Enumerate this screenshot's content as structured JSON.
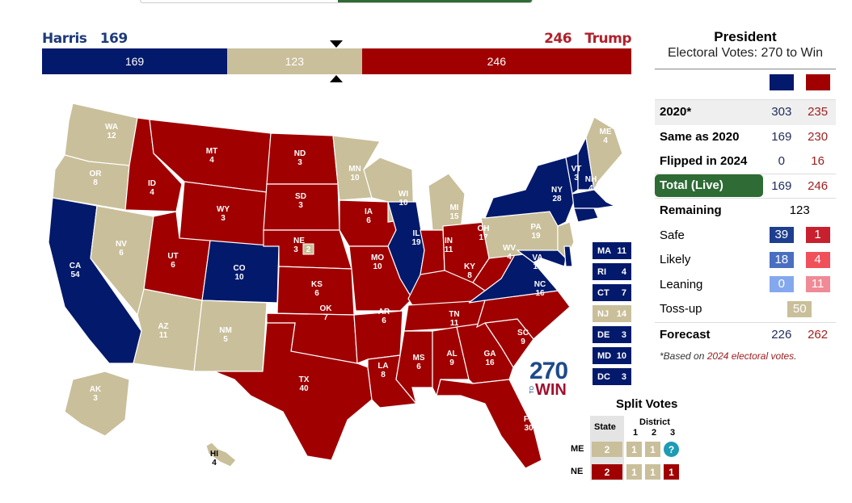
{
  "colors": {
    "dem": "#03196b",
    "rep": "#a00000",
    "tossup": "#c9bf9a",
    "green": "#2e6b35"
  },
  "header": {
    "harris_label": "Harris",
    "harris_total": "169",
    "trump_total": "246",
    "trump_label": "Trump"
  },
  "bar": {
    "dem": 169,
    "tossup": 123,
    "rep": 246,
    "dem_label": "169",
    "tossup_label": "123",
    "rep_label": "246"
  },
  "states": [
    {
      "abbr": "WA",
      "ev": "12",
      "p": "t"
    },
    {
      "abbr": "OR",
      "ev": "8",
      "p": "t"
    },
    {
      "abbr": "CA",
      "ev": "54",
      "p": "d"
    },
    {
      "abbr": "NV",
      "ev": "6",
      "p": "t"
    },
    {
      "abbr": "ID",
      "ev": "4",
      "p": "r"
    },
    {
      "abbr": "MT",
      "ev": "4",
      "p": "r"
    },
    {
      "abbr": "WY",
      "ev": "3",
      "p": "r"
    },
    {
      "abbr": "UT",
      "ev": "6",
      "p": "r"
    },
    {
      "abbr": "AZ",
      "ev": "11",
      "p": "t"
    },
    {
      "abbr": "CO",
      "ev": "10",
      "p": "d"
    },
    {
      "abbr": "NM",
      "ev": "5",
      "p": "t"
    },
    {
      "abbr": "ND",
      "ev": "3",
      "p": "r"
    },
    {
      "abbr": "SD",
      "ev": "3",
      "p": "r"
    },
    {
      "abbr": "NE",
      "ev": "3",
      "p": "r"
    },
    {
      "abbr": "KS",
      "ev": "6",
      "p": "r"
    },
    {
      "abbr": "OK",
      "ev": "7",
      "p": "r"
    },
    {
      "abbr": "TX",
      "ev": "40",
      "p": "r"
    },
    {
      "abbr": "MN",
      "ev": "10",
      "p": "t"
    },
    {
      "abbr": "IA",
      "ev": "6",
      "p": "r"
    },
    {
      "abbr": "MO",
      "ev": "10",
      "p": "r"
    },
    {
      "abbr": "AR",
      "ev": "6",
      "p": "r"
    },
    {
      "abbr": "LA",
      "ev": "8",
      "p": "r"
    },
    {
      "abbr": "WI",
      "ev": "10",
      "p": "t"
    },
    {
      "abbr": "IL",
      "ev": "19",
      "p": "d"
    },
    {
      "abbr": "MI",
      "ev": "15",
      "p": "t"
    },
    {
      "abbr": "IN",
      "ev": "11",
      "p": "r"
    },
    {
      "abbr": "OH",
      "ev": "17",
      "p": "r"
    },
    {
      "abbr": "KY",
      "ev": "8",
      "p": "r"
    },
    {
      "abbr": "TN",
      "ev": "11",
      "p": "r"
    },
    {
      "abbr": "MS",
      "ev": "6",
      "p": "r"
    },
    {
      "abbr": "AL",
      "ev": "9",
      "p": "r"
    },
    {
      "abbr": "GA",
      "ev": "16",
      "p": "r"
    },
    {
      "abbr": "FL",
      "ev": "30",
      "p": "r"
    },
    {
      "abbr": "SC",
      "ev": "9",
      "p": "r"
    },
    {
      "abbr": "NC",
      "ev": "16",
      "p": "r"
    },
    {
      "abbr": "VA",
      "ev": "13",
      "p": "d"
    },
    {
      "abbr": "WV",
      "ev": "4",
      "p": "r"
    },
    {
      "abbr": "PA",
      "ev": "19",
      "p": "t"
    },
    {
      "abbr": "NY",
      "ev": "28",
      "p": "d"
    },
    {
      "abbr": "NJ",
      "ev": "",
      "p": "t"
    },
    {
      "abbr": "MD",
      "ev": "",
      "p": "d"
    },
    {
      "abbr": "DE",
      "ev": "",
      "p": "d"
    },
    {
      "abbr": "VT",
      "ev": "3",
      "p": "d"
    },
    {
      "abbr": "NH",
      "ev": "4",
      "p": "d"
    },
    {
      "abbr": "ME",
      "ev": "4",
      "p": "t"
    },
    {
      "abbr": "MA",
      "ev": "",
      "p": "d"
    },
    {
      "abbr": "CT",
      "ev": "",
      "p": "d"
    },
    {
      "abbr": "AK",
      "ev": "3",
      "p": "t"
    },
    {
      "abbr": "HI",
      "ev": "4",
      "p": "t"
    }
  ],
  "ne_split_ev": "2",
  "small_states": [
    {
      "abbr": "MA",
      "ev": "11",
      "p": "d"
    },
    {
      "abbr": "RI",
      "ev": "4",
      "p": "d"
    },
    {
      "abbr": "CT",
      "ev": "7",
      "p": "d"
    },
    {
      "abbr": "NJ",
      "ev": "14",
      "p": "t"
    },
    {
      "abbr": "DE",
      "ev": "3",
      "p": "d"
    },
    {
      "abbr": "MD",
      "ev": "10",
      "p": "d"
    },
    {
      "abbr": "DC",
      "ev": "3",
      "p": "d"
    }
  ],
  "logo": {
    "num": "270",
    "to": "TO",
    "win": "WIN"
  },
  "split_votes": {
    "title": "Split Votes",
    "state_header": "State",
    "district_header": "District",
    "districts": [
      "1",
      "2",
      "3"
    ],
    "rows": [
      {
        "state": "ME",
        "cells": [
          {
            "v": "2",
            "p": "t"
          },
          {
            "v": "1",
            "p": "t"
          },
          {
            "v": "1",
            "p": "t"
          },
          {
            "v": "?",
            "p": "q"
          }
        ]
      },
      {
        "state": "NE",
        "cells": [
          {
            "v": "2",
            "p": "r"
          },
          {
            "v": "1",
            "p": "t"
          },
          {
            "v": "1",
            "p": "t"
          },
          {
            "v": "1",
            "p": "r"
          }
        ]
      }
    ]
  },
  "panel": {
    "title": "President",
    "subtitle": "Electoral Votes: 270 to Win",
    "rows": [
      {
        "label": "2020*",
        "d": "303",
        "r": "235"
      },
      {
        "label": "Same as 2020",
        "d": "169",
        "r": "230"
      },
      {
        "label": "Flipped in 2024",
        "d": "0",
        "r": "16"
      },
      {
        "label": "Total (Live)",
        "d": "169",
        "r": "246"
      }
    ],
    "remaining_label": "Remaining",
    "remaining": "123",
    "ratings": [
      {
        "label": "Safe",
        "d": "39",
        "r": "1",
        "dc": "#1e3f8f",
        "rc": "#c8202e"
      },
      {
        "label": "Likely",
        "d": "18",
        "r": "4",
        "dc": "#4a6fc0",
        "rc": "#f0505a"
      },
      {
        "label": "Leaning",
        "d": "0",
        "r": "11",
        "dc": "#84a8ee",
        "rc": "#f08a96"
      }
    ],
    "tossup_label": "Toss-up",
    "tossup": "50",
    "forecast_label": "Forecast",
    "forecast_d": "226",
    "forecast_r": "262",
    "footnote_pre": "*Based on ",
    "footnote_link": "2024 electoral votes",
    "footnote_post": "."
  }
}
